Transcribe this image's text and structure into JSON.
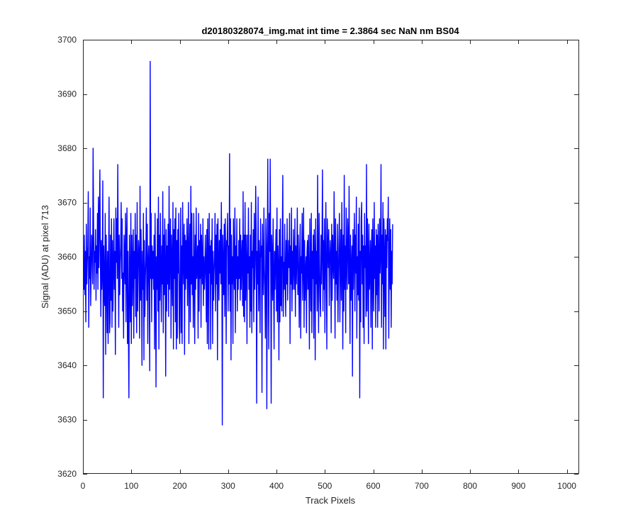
{
  "chart_data": {
    "type": "line",
    "title": "d20180328074_img.mat int time = 2.3864 sec  NaN nm BS04",
    "xlabel": "Track Pixels",
    "ylabel": "Signal (ADU) at pixel 713",
    "xlim": [
      0,
      1024
    ],
    "ylim": [
      3620,
      3700
    ],
    "xticks": [
      0,
      100,
      200,
      300,
      400,
      500,
      600,
      700,
      800,
      900,
      1000
    ],
    "yticks": [
      3620,
      3630,
      3640,
      3650,
      3660,
      3670,
      3680,
      3690,
      3700
    ],
    "grid": false,
    "legend": "none",
    "line_color": "#0000ff",
    "series": [
      {
        "x_start": 1,
        "x_step": 1,
        "values": [
          3658,
          3654,
          3664,
          3653,
          3661,
          3648,
          3666,
          3655,
          3659,
          3662,
          3672,
          3647,
          3660,
          3656,
          3669,
          3651,
          3657,
          3664,
          3662,
          3655,
          3680,
          3666,
          3654,
          3661,
          3659,
          3665,
          3652,
          3662,
          3657,
          3668,
          3654,
          3671,
          3658,
          3666,
          3676,
          3660,
          3649,
          3663,
          3654,
          3658,
          3674,
          3634,
          3662,
          3655,
          3651,
          3668,
          3642,
          3664,
          3657,
          3646,
          3661,
          3644,
          3659,
          3671,
          3646,
          3648,
          3664,
          3652,
          3667,
          3647,
          3663,
          3650,
          3658,
          3667,
          3654,
          3661,
          3642,
          3669,
          3659,
          3667,
          3656,
          3677,
          3660,
          3647,
          3664,
          3653,
          3659,
          3662,
          3670,
          3656,
          3667,
          3650,
          3657,
          3645,
          3664,
          3660,
          3655,
          3668,
          3648,
          3662,
          3669,
          3644,
          3661,
          3646,
          3634,
          3664,
          3656,
          3648,
          3668,
          3644,
          3664,
          3651,
          3659,
          3665,
          3645,
          3661,
          3656,
          3668,
          3649,
          3664,
          3646,
          3670,
          3650,
          3658,
          3663,
          3660,
          3645,
          3673,
          3652,
          3665,
          3657,
          3640,
          3661,
          3654,
          3668,
          3641,
          3663,
          3649,
          3656,
          3660,
          3669,
          3652,
          3666,
          3644,
          3659,
          3662,
          3654,
          3639,
          3696,
          3656,
          3668,
          3648,
          3662,
          3656,
          3661,
          3654,
          3664,
          3643,
          3668,
          3658,
          3636,
          3660,
          3654,
          3667,
          3650,
          3671,
          3643,
          3664,
          3652,
          3668,
          3658,
          3648,
          3662,
          3655,
          3672,
          3646,
          3664,
          3653,
          3667,
          3658,
          3638,
          3665,
          3650,
          3662,
          3655,
          3666,
          3649,
          3673,
          3654,
          3661,
          3667,
          3645,
          3664,
          3659,
          3651,
          3670,
          3643,
          3665,
          3656,
          3667,
          3648,
          3669,
          3643,
          3663,
          3645,
          3665,
          3657,
          3668,
          3647,
          3644,
          3658,
          3669,
          3646,
          3662,
          3644,
          3670,
          3660,
          3655,
          3666,
          3642,
          3664,
          3654,
          3663,
          3656,
          3667,
          3651,
          3660,
          3670,
          3644,
          3661,
          3666,
          3648,
          3673,
          3655,
          3668,
          3653,
          3660,
          3647,
          3668,
          3658,
          3644,
          3664,
          3654,
          3669,
          3656,
          3659,
          3662,
          3645,
          3668,
          3650,
          3663,
          3656,
          3666,
          3647,
          3664,
          3659,
          3655,
          3667,
          3651,
          3660,
          3654,
          3657,
          3664,
          3658,
          3648,
          3665,
          3644,
          3667,
          3659,
          3643,
          3668,
          3657,
          3662,
          3643,
          3663,
          3655,
          3667,
          3644,
          3661,
          3652,
          3657,
          3660,
          3668,
          3650,
          3664,
          3655,
          3666,
          3641,
          3667,
          3659,
          3652,
          3663,
          3657,
          3665,
          3655,
          3670,
          3660,
          3629,
          3664,
          3658,
          3653,
          3666,
          3649,
          3667,
          3661,
          3644,
          3663,
          3662,
          3668,
          3650,
          3662,
          3655,
          3679,
          3650,
          3667,
          3641,
          3664,
          3655,
          3660,
          3644,
          3667,
          3658,
          3654,
          3669,
          3646,
          3662,
          3656,
          3667,
          3650,
          3660,
          3654,
          3663,
          3656,
          3667,
          3652,
          3664,
          3654,
          3660,
          3663,
          3651,
          3672,
          3649,
          3664,
          3648,
          3670,
          3652,
          3664,
          3659,
          3644,
          3664,
          3657,
          3669,
          3654,
          3660,
          3647,
          3664,
          3650,
          3670,
          3646,
          3661,
          3658,
          3665,
          3648,
          3668,
          3654,
          3659,
          3673,
          3665,
          3633,
          3661,
          3655,
          3671,
          3650,
          3663,
          3659,
          3646,
          3667,
          3660,
          3662,
          3635,
          3666,
          3658,
          3653,
          3669,
          3658,
          3654,
          3645,
          3667,
          3662,
          3632,
          3660,
          3678,
          3657,
          3643,
          3668,
          3661,
          3678,
          3658,
          3633,
          3664,
          3660,
          3652,
          3667,
          3656,
          3643,
          3661,
          3654,
          3660,
          3665,
          3650,
          3669,
          3648,
          3662,
          3658,
          3641,
          3665,
          3648,
          3667,
          3651,
          3660,
          3650,
          3664,
          3675,
          3649,
          3659,
          3654,
          3666,
          3656,
          3649,
          3663,
          3655,
          3667,
          3652,
          3658,
          3663,
          3658,
          3668,
          3644,
          3662,
          3655,
          3669,
          3650,
          3661,
          3654,
          3665,
          3658,
          3654,
          3667,
          3649,
          3662,
          3655,
          3660,
          3669,
          3653,
          3664,
          3656,
          3647,
          3661,
          3666,
          3645,
          3660,
          3657,
          3668,
          3652,
          3659,
          3669,
          3647,
          3663,
          3652,
          3657,
          3660,
          3646,
          3661,
          3663,
          3654,
          3664,
          3656,
          3643,
          3667,
          3659,
          3650,
          3668,
          3646,
          3661,
          3656,
          3664,
          3645,
          3665,
          3660,
          3641,
          3667,
          3655,
          3661,
          3650,
          3675,
          3657,
          3646,
          3668,
          3659,
          3652,
          3649,
          3664,
          3655,
          3662,
          3676,
          3650,
          3663,
          3654,
          3667,
          3646,
          3659,
          3670,
          3656,
          3643,
          3667,
          3662,
          3658,
          3665,
          3651,
          3659,
          3663,
          3660,
          3646,
          3666,
          3652,
          3664,
          3659,
          3656,
          3672,
          3661,
          3645,
          3667,
          3655,
          3661,
          3652,
          3666,
          3648,
          3656,
          3663,
          3668,
          3648,
          3659,
          3665,
          3652,
          3670,
          3660,
          3643,
          3664,
          3650,
          3675,
          3654,
          3662,
          3646,
          3669,
          3659,
          3654,
          3667,
          3663,
          3655,
          3673,
          3657,
          3644,
          3664,
          3652,
          3658,
          3662,
          3638,
          3665,
          3654,
          3661,
          3668,
          3650,
          3664,
          3657,
          3671,
          3645,
          3660,
          3653,
          3666,
          3652,
          3669,
          3634,
          3661,
          3648,
          3667,
          3670,
          3655,
          3664,
          3647,
          3662,
          3644,
          3668,
          3658,
          3662,
          3649,
          3677,
          3650,
          3667,
          3660,
          3644,
          3666,
          3654,
          3657,
          3663,
          3647,
          3661,
          3665,
          3643,
          3667,
          3659,
          3650,
          3670,
          3656,
          3662,
          3647,
          3665,
          3653,
          3664,
          3647,
          3666,
          3660,
          3650,
          3667,
          3657,
          3661,
          3677,
          3647,
          3664,
          3655,
          3670,
          3643,
          3667,
          3660,
          3649,
          3665,
          3643,
          3664,
          3658,
          3667,
          3663,
          3671,
          3645,
          3659,
          3667,
          3654,
          3665,
          3647,
          3661,
          3655,
          3666
        ]
      }
    ]
  }
}
